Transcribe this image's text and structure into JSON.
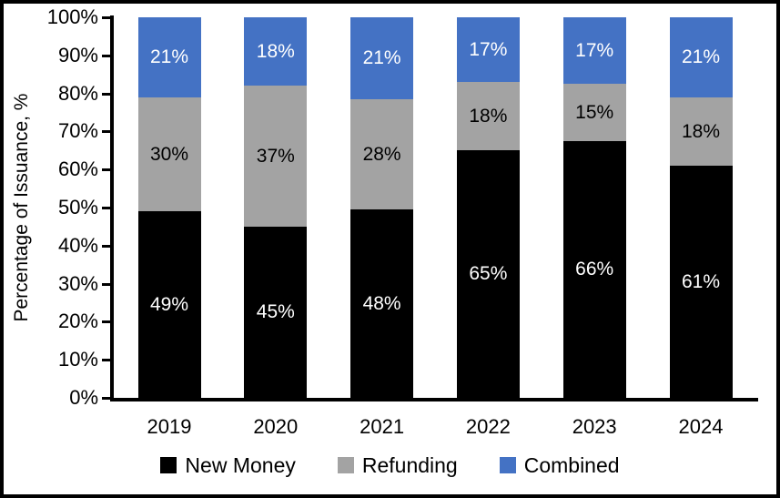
{
  "chart_data": {
    "type": "bar",
    "stacked": true,
    "title": "",
    "ylabel": "Percentage of Issuance, %",
    "xlabel": "",
    "ylim": [
      0,
      100
    ],
    "grid": false,
    "legend_position": "bottom",
    "categories": [
      "2019",
      "2020",
      "2021",
      "2022",
      "2023",
      "2024"
    ],
    "series": [
      {
        "name": "New Money",
        "color": "#000000",
        "label_color": "#ffffff",
        "values": [
          49,
          45,
          48,
          65,
          66,
          61
        ],
        "labels": [
          "49%",
          "45%",
          "48%",
          "65%",
          "66%",
          "61%"
        ]
      },
      {
        "name": "Refunding",
        "color": "#A3A3A3",
        "label_color": "#000000",
        "values": [
          30,
          37,
          28,
          18,
          15,
          18
        ],
        "labels": [
          "30%",
          "37%",
          "28%",
          "18%",
          "15%",
          "18%"
        ]
      },
      {
        "name": "Combined",
        "color": "#4472C4",
        "label_color": "#ffffff",
        "values": [
          21,
          18,
          21,
          17,
          17,
          21
        ],
        "labels": [
          "21%",
          "18%",
          "21%",
          "17%",
          "17%",
          "21%"
        ]
      }
    ],
    "yticks": [
      {
        "v": 0,
        "label": "0%"
      },
      {
        "v": 10,
        "label": "10%"
      },
      {
        "v": 20,
        "label": "20%"
      },
      {
        "v": 30,
        "label": "30%"
      },
      {
        "v": 40,
        "label": "40%"
      },
      {
        "v": 50,
        "label": "50%"
      },
      {
        "v": 60,
        "label": "60%"
      },
      {
        "v": 70,
        "label": "70%"
      },
      {
        "v": 80,
        "label": "80%"
      },
      {
        "v": 90,
        "label": "90%"
      },
      {
        "v": 100,
        "label": "100%"
      }
    ]
  }
}
